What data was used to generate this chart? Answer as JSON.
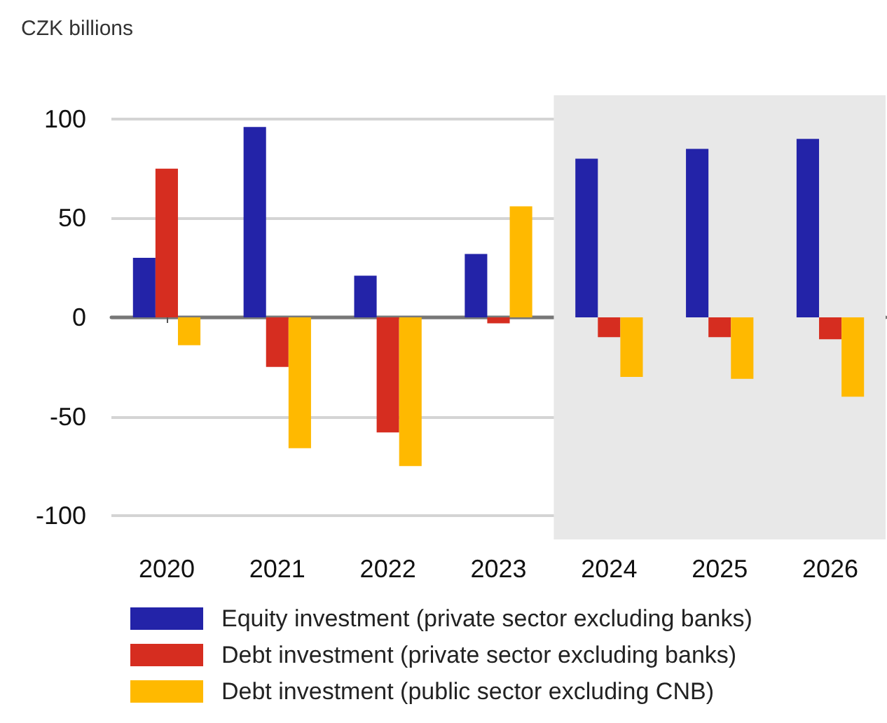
{
  "chart_data": {
    "type": "bar",
    "ylabel": "CZK billions",
    "categories": [
      "2020",
      "2021",
      "2022",
      "2023",
      "2024",
      "2025",
      "2026"
    ],
    "series": [
      {
        "name": "Equity investment (private sector excluding banks)",
        "color": "#2323a8",
        "values": [
          30,
          96,
          21,
          32,
          80,
          85,
          90
        ]
      },
      {
        "name": "Debt investment (private sector excluding banks)",
        "color": "#d62d20",
        "values": [
          75,
          -25,
          -58,
          -3,
          -10,
          -10,
          -11
        ]
      },
      {
        "name": "Debt investment (public sector excluding CNB)",
        "color": "#ffb900",
        "values": [
          -14,
          -66,
          -75,
          56,
          -30,
          -31,
          -40
        ]
      }
    ],
    "ylim": [
      -112,
      112
    ],
    "yticks": [
      -100,
      -50,
      0,
      50,
      100
    ],
    "grid": "y",
    "legend": "bottom",
    "bands": [
      {
        "axis": "x",
        "from": "2024",
        "to": "2026",
        "color": "#e8e8e8"
      }
    ]
  }
}
